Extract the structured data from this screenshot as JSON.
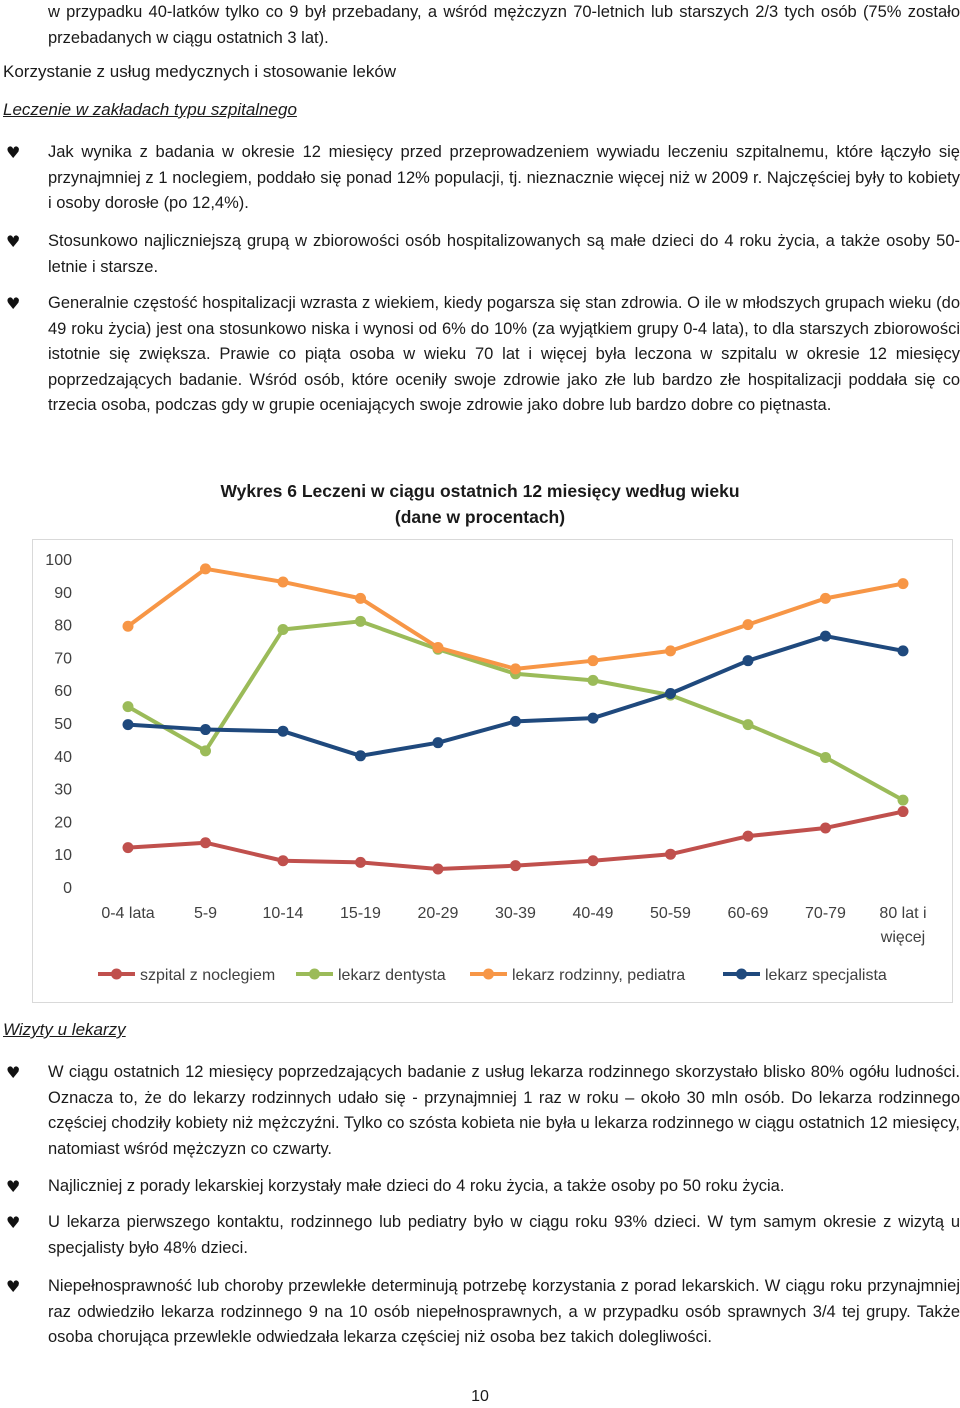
{
  "intro": {
    "continuation": "w przypadku 40-latków tylko co 9 był przebadany, a wśród mężczyzn 70-letnich lub starszych 2/3 tych osób (75% zostało przebadanych w ciągu ostatnich 3 lat)."
  },
  "section": {
    "title": "Korzystanie z usług medycznych i stosowanie leków",
    "subtitle": "Leczenie w zakładach typu szpitalnego",
    "bullets": [
      "Jak wynika z badania w okresie 12 miesięcy przed przeprowadzeniem wywiadu leczeniu szpitalnemu, które łączyło się przynajmniej z 1 noclegiem, poddało się ponad 12% populacji, tj. nieznacznie więcej niż w 2009 r. Najczęściej były to kobiety i osoby dorosłe (po 12,4%).",
      "Stosunkowo najliczniejszą grupą w zbiorowości osób hospitalizowanych są małe dzieci do 4 roku życia, a także osoby 50-letnie i starsze.",
      "Generalnie częstość hospitalizacji wzrasta z wiekiem, kiedy pogarsza się stan zdrowia. O ile w młodszych grupach wieku (do 49 roku życia) jest ona stosunkowo niska i wynosi od 6% do 10% (za wyjątkiem grupy 0-4 lata), to dla starszych zbiorowości istotnie się zwiększa. Prawie co piąta osoba w wieku 70 lat i więcej była leczona w szpitalu w okresie 12 miesięcy poprzedzających badanie. Wśród osób, które oceniły swoje zdrowie jako złe lub bardzo złe hospitalizacji poddała się co trzecia osoba, podczas gdy w grupie oceniających swoje zdrowie jako dobre lub bardzo dobre co piętnasta."
    ]
  },
  "chart_data": {
    "type": "line",
    "title_line1": "Wykres 6   Leczeni  w ciągu ostatnich 12 miesięcy według wieku",
    "title_line2": "(dane w procentach)",
    "categories": [
      "0-4 lata",
      "5-9",
      "10-14",
      "15-19",
      "20-29",
      "30-39",
      "40-49",
      "50-59",
      "60-69",
      "70-79",
      "80 lat i więcej"
    ],
    "ylim": [
      0,
      100
    ],
    "yticks": [
      0,
      10,
      20,
      30,
      40,
      50,
      60,
      70,
      80,
      90,
      100
    ],
    "grid": false,
    "legend_position": "bottom",
    "series": [
      {
        "name": "szpital z noclegiem",
        "color": "#c0504d",
        "values": [
          12,
          13.5,
          8,
          7.5,
          5.5,
          6.5,
          8,
          10,
          15.5,
          18,
          23
        ]
      },
      {
        "name": "lekarz dentysta",
        "color": "#9bbb59",
        "values": [
          55,
          41.5,
          78.5,
          81,
          72.5,
          65,
          63,
          58.5,
          49.5,
          39.5,
          26.5
        ]
      },
      {
        "name": "lekarz rodzinny, pediatra",
        "color": "#f79646",
        "values": [
          79.5,
          97,
          93,
          88,
          73,
          66.5,
          69,
          72,
          80,
          88,
          92.5
        ]
      },
      {
        "name": "lekarz specjalista",
        "color": "#1f497d",
        "values": [
          49.5,
          48,
          47.5,
          40,
          44,
          50.5,
          51.5,
          59,
          69,
          76.5,
          72
        ]
      }
    ]
  },
  "section2": {
    "subtitle": "Wizyty u lekarzy",
    "bullets": [
      "W ciągu ostatnich 12 miesięcy poprzedzających badanie z usług lekarza rodzinnego skorzystało blisko 80% ogółu ludności. Oznacza to, że do lekarzy rodzinnych udało się - przynajmniej 1 raz w roku – około 30 mln osób. Do lekarza rodzinnego częściej chodziły kobiety niż mężczyźni. Tylko co szósta kobieta nie była u lekarza rodzinnego w ciągu ostatnich 12 miesięcy, natomiast wśród mężczyzn co czwarty.",
      "Najliczniej z porady lekarskiej korzystały małe dzieci do 4 roku życia, a także osoby po 50 roku życia.",
      "U lekarza pierwszego kontaktu, rodzinnego lub pediatry było w ciągu roku 93% dzieci. W tym samym okresie z wizytą u specjalisty było 48% dzieci.",
      "Niepełnosprawność lub choroby przewlekłe determinują potrzebę korzystania z porad lekarskich. W ciągu roku przynajmniej raz odwiedziło lekarza rodzinnego 9 na 10 osób niepełnosprawnych, a w przypadku osób sprawnych 3/4 tej grupy. Także osoba chorująca przewlekle odwiedzała lekarza częściej niż osoba bez takich dolegliwości."
    ]
  },
  "bullet_glyph": "♥",
  "page_number": "10"
}
